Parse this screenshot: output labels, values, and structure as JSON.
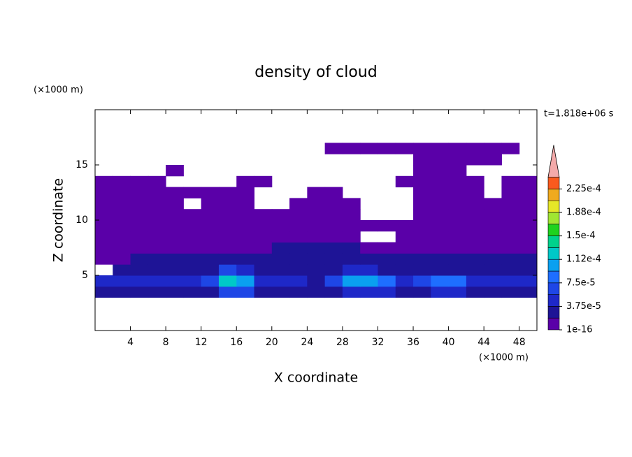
{
  "chart_data": {
    "type": "contour",
    "title": "density of cloud",
    "x_label": "X coordinate",
    "y_label": "Z coordinate",
    "x_unit": "(×1000 m)",
    "y_unit": "(×1000 m)",
    "annotation": "t=1.818e+06 s",
    "xlim": [
      0,
      50
    ],
    "ylim": [
      0,
      20
    ],
    "xticks": [
      4,
      8,
      12,
      16,
      20,
      24,
      28,
      32,
      36,
      40,
      44,
      48
    ],
    "yticks": [
      5,
      10,
      15
    ],
    "x": [
      1,
      3,
      5,
      7,
      9,
      11,
      13,
      15,
      17,
      19,
      21,
      23,
      25,
      27,
      29,
      31,
      33,
      35,
      37,
      39,
      41,
      43,
      45,
      47,
      49
    ],
    "z": [
      3.5,
      4.5,
      5.5,
      6.5,
      7.5,
      8.5,
      9.5,
      10.5,
      11.5,
      12.5,
      13.5,
      14.5,
      15.5,
      16.5,
      17.5
    ],
    "values": [
      [
        2e-05,
        2e-05,
        2e-05,
        2e-05,
        2e-05,
        2e-05,
        2e-05,
        6e-05,
        6e-05,
        2e-05,
        2e-05,
        2e-05,
        2e-05,
        2e-05,
        5e-05,
        5e-05,
        5e-05,
        2e-05,
        2e-05,
        5e-05,
        5e-05,
        2e-05,
        2e-05,
        2e-05,
        2e-05
      ],
      [
        4e-05,
        4e-05,
        4e-05,
        4e-05,
        4e-05,
        4e-05,
        7e-05,
        0.00013,
        0.00011,
        5e-05,
        4e-05,
        4e-05,
        2e-05,
        6e-05,
        0.0001,
        0.00011,
        8e-05,
        4e-05,
        6e-05,
        9e-05,
        8e-05,
        4e-05,
        4e-05,
        4e-05,
        4e-05
      ],
      [
        null,
        2e-05,
        2e-05,
        2e-05,
        2e-05,
        2e-05,
        2e-05,
        6e-05,
        5e-05,
        2e-05,
        2e-05,
        2e-05,
        2e-05,
        2e-05,
        5e-05,
        5e-05,
        2e-05,
        2e-05,
        2e-05,
        3e-05,
        2e-05,
        2e-05,
        2e-05,
        2e-05,
        2e-05
      ],
      [
        1e-05,
        1e-05,
        2e-05,
        2e-05,
        2e-05,
        2e-05,
        2e-05,
        2e-05,
        2e-05,
        2e-05,
        2e-05,
        2e-05,
        2e-05,
        2e-05,
        2e-05,
        2e-05,
        2e-05,
        2e-05,
        2e-05,
        2e-05,
        2e-05,
        2e-05,
        2e-05,
        2e-05,
        2e-05
      ],
      [
        1e-05,
        1e-05,
        1e-05,
        1e-05,
        1e-05,
        1e-05,
        1e-05,
        1e-05,
        1e-05,
        1e-05,
        2e-05,
        2e-05,
        2e-05,
        2e-05,
        2e-05,
        1e-05,
        1e-05,
        1e-05,
        1e-05,
        1e-05,
        1e-05,
        1e-05,
        1e-05,
        1e-05,
        1e-05
      ],
      [
        1e-05,
        1e-05,
        1e-05,
        1e-05,
        1e-05,
        1e-05,
        1e-05,
        1e-05,
        1e-05,
        1e-05,
        1e-05,
        1e-05,
        1e-05,
        1e-05,
        1e-05,
        null,
        null,
        1e-05,
        1e-05,
        1e-05,
        1e-05,
        1e-05,
        1e-05,
        1e-05,
        1e-05
      ],
      [
        1e-05,
        1e-05,
        1e-05,
        1e-05,
        1e-05,
        1e-05,
        1e-05,
        1e-05,
        1e-05,
        1e-05,
        1e-05,
        1e-05,
        1e-05,
        1e-05,
        1e-05,
        1e-05,
        1e-05,
        1e-05,
        1e-05,
        1e-05,
        1e-05,
        1e-05,
        1e-05,
        1e-05,
        1e-05
      ],
      [
        1e-05,
        1e-05,
        1e-05,
        1e-05,
        1e-05,
        1e-05,
        1e-05,
        1e-05,
        1e-05,
        1e-05,
        1e-05,
        1e-05,
        1e-05,
        1e-05,
        1e-05,
        null,
        null,
        null,
        1e-05,
        1e-05,
        1e-05,
        1e-05,
        1e-05,
        1e-05,
        1e-05
      ],
      [
        1e-05,
        1e-05,
        1e-05,
        1e-05,
        1e-05,
        null,
        1e-05,
        1e-05,
        1e-05,
        null,
        null,
        1e-05,
        1e-05,
        1e-05,
        1e-05,
        null,
        null,
        null,
        1e-05,
        1e-05,
        1e-05,
        1e-05,
        1e-05,
        1e-05,
        1e-05
      ],
      [
        1e-05,
        1e-05,
        1e-05,
        1e-05,
        1e-05,
        1e-05,
        1e-05,
        1e-05,
        1e-05,
        null,
        null,
        null,
        1e-05,
        1e-05,
        null,
        null,
        null,
        null,
        1e-05,
        1e-05,
        1e-05,
        1e-05,
        null,
        1e-05,
        1e-05
      ],
      [
        1e-05,
        1e-05,
        1e-05,
        1e-05,
        null,
        null,
        null,
        null,
        1e-05,
        1e-05,
        null,
        null,
        null,
        null,
        null,
        null,
        null,
        1e-05,
        1e-05,
        1e-05,
        1e-05,
        1e-05,
        null,
        1e-05,
        1e-05
      ],
      [
        null,
        null,
        null,
        null,
        1e-05,
        null,
        null,
        null,
        null,
        null,
        null,
        null,
        null,
        null,
        null,
        null,
        null,
        null,
        1e-05,
        1e-05,
        1e-05,
        null,
        null,
        null,
        null
      ],
      [
        null,
        null,
        null,
        null,
        null,
        null,
        null,
        null,
        null,
        null,
        null,
        null,
        null,
        null,
        null,
        null,
        null,
        null,
        1e-05,
        1e-05,
        1e-05,
        1e-05,
        1e-05,
        null,
        null
      ],
      [
        null,
        null,
        null,
        null,
        null,
        null,
        null,
        null,
        null,
        null,
        null,
        null,
        null,
        1e-05,
        1e-05,
        1e-05,
        1e-05,
        1e-05,
        1e-05,
        1e-05,
        1e-05,
        1e-05,
        1e-05,
        1e-05,
        null
      ],
      [
        null,
        null,
        null,
        null,
        null,
        null,
        null,
        null,
        null,
        null,
        null,
        null,
        null,
        null,
        null,
        null,
        null,
        null,
        null,
        null,
        null,
        null,
        null,
        null,
        null
      ]
    ],
    "colorbar": {
      "levels": [
        1e-16,
        1.875e-05,
        3.75e-05,
        5.625e-05,
        7.5e-05,
        9.375e-05,
        0.0001125,
        0.00013125,
        0.00015,
        0.00016875,
        0.0001875,
        0.00020625,
        0.000225,
        0.00024375
      ],
      "colors": [
        "#5a00a8",
        "#1e1496",
        "#1e28c8",
        "#1e46e6",
        "#1e6eff",
        "#0aa0f0",
        "#00c8c8",
        "#00d28c",
        "#1ed21e",
        "#a0e632",
        "#e6e628",
        "#f0aa1e",
        "#fa5a1e"
      ],
      "extend_color": "#f4aaaa",
      "ticks": [
        {
          "value": 1e-16,
          "label": "1e-16"
        },
        {
          "value": 3.75e-05,
          "label": "3.75e-5"
        },
        {
          "value": 7.5e-05,
          "label": "7.5e-5"
        },
        {
          "value": 0.0001125,
          "label": "1.12e-4"
        },
        {
          "value": 0.00015,
          "label": "1.5e-4"
        },
        {
          "value": 0.0001875,
          "label": "1.88e-4"
        },
        {
          "value": 0.000225,
          "label": "2.25e-4"
        }
      ]
    }
  }
}
